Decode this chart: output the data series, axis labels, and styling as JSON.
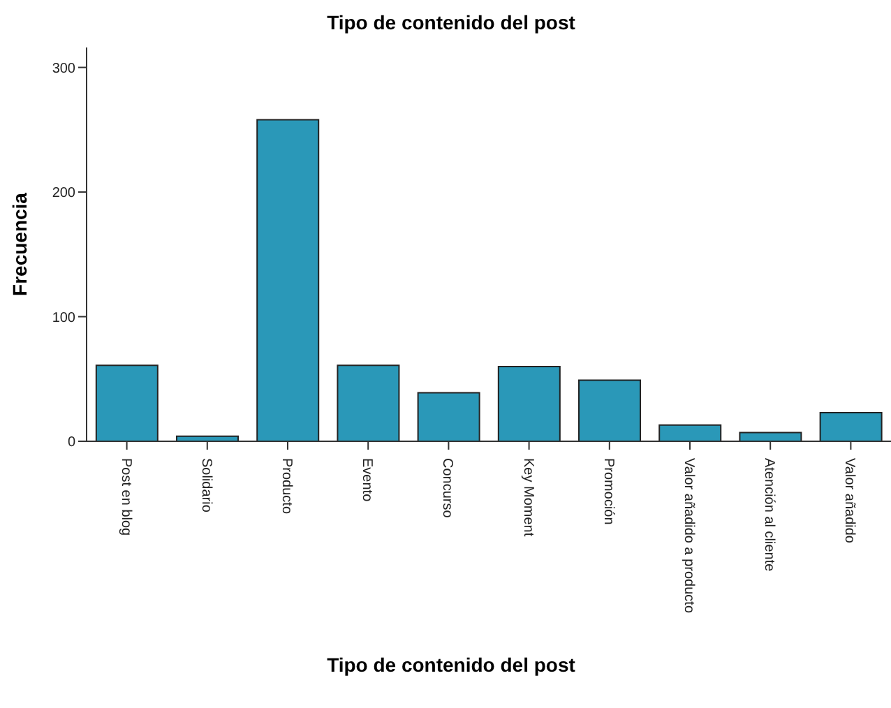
{
  "chart_data": {
    "type": "bar",
    "title": "Tipo de contenido del post",
    "xlabel": "Tipo de contenido del post",
    "ylabel": "Frecuencia",
    "categories": [
      "Post en blog",
      "Solidario",
      "Producto",
      "Evento",
      "Concurso",
      "Key Moment",
      "Promoción",
      "Valor añadido a producto",
      "Atención al cliente",
      "Valor añadido"
    ],
    "values": [
      61,
      4,
      258,
      61,
      39,
      60,
      49,
      13,
      7,
      23
    ],
    "color": "#2a98b8",
    "ylim": [
      0,
      316
    ],
    "yticks": [
      0,
      100,
      200,
      300
    ],
    "grid": false,
    "legend": false
  }
}
